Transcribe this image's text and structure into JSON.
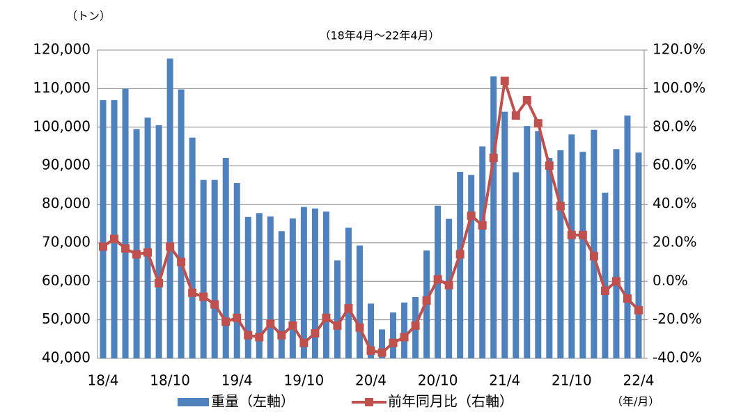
{
  "chart_data": {
    "type": "bar_line",
    "unit_label": "（トン）",
    "subtitle": "（18年4月～22年4月）",
    "x_unit_label": "（年/月）",
    "categories": [
      "18/4",
      null,
      null,
      null,
      null,
      null,
      "18/10",
      null,
      null,
      null,
      null,
      null,
      "19/4",
      null,
      null,
      null,
      null,
      null,
      "19/10",
      null,
      null,
      null,
      null,
      null,
      "20/4",
      null,
      null,
      null,
      null,
      null,
      "20/10",
      null,
      null,
      null,
      null,
      null,
      "21/4",
      null,
      null,
      null,
      null,
      null,
      "21/10",
      null,
      null,
      null,
      null,
      null,
      "22/4"
    ],
    "series": [
      {
        "name": "重量（左軸）",
        "color": "#4f81bd",
        "axis": "y",
        "values": [
          107000,
          107000,
          110000,
          99500,
          102500,
          100500,
          117800,
          109800,
          97300,
          86300,
          86300,
          92000,
          85500,
          76700,
          77700,
          76800,
          73000,
          76300,
          79300,
          78900,
          78100,
          65400,
          73900,
          69300,
          54200,
          47500,
          51900,
          54500,
          55900,
          68000,
          79600,
          76200,
          88400,
          87600,
          95000,
          113200,
          104000,
          88300,
          100300,
          99000,
          92000,
          94000,
          98100,
          93600,
          99300,
          83000,
          94300,
          103000,
          93400
        ]
      },
      {
        "name": "前年同月比（右軸）",
        "color": "#c0504d",
        "axis": "y2",
        "values": [
          18,
          22,
          17,
          14,
          15,
          -1,
          18,
          10,
          -6,
          -8,
          -12,
          -21,
          -19,
          -28,
          -29,
          -22,
          -28,
          -23,
          -32,
          -27,
          -19,
          -23,
          -14,
          -24,
          -36,
          -37,
          -32,
          -29,
          -23,
          -10,
          1,
          -2,
          14,
          34,
          29,
          64,
          104,
          86,
          94,
          82,
          60,
          39,
          24,
          24,
          13,
          -5,
          0,
          -9,
          -15
        ]
      }
    ],
    "ylim": [
      40000,
      120000
    ],
    "yticks": [
      {
        "value": 40000,
        "label": "40,000"
      },
      {
        "value": 50000,
        "label": "50,000"
      },
      {
        "value": 60000,
        "label": "60,000"
      },
      {
        "value": 70000,
        "label": "70,000"
      },
      {
        "value": 80000,
        "label": "80,000"
      },
      {
        "value": 90000,
        "label": "90,000"
      },
      {
        "value": 100000,
        "label": "100,000"
      },
      {
        "value": 110000,
        "label": "110,000"
      },
      {
        "value": 120000,
        "label": "120,000"
      }
    ],
    "y2lim": [
      -40,
      120
    ],
    "y2ticks": [
      {
        "value": -40,
        "label": "-40.0%"
      },
      {
        "value": -20,
        "label": "-20.0%"
      },
      {
        "value": 0,
        "label": "0.0%"
      },
      {
        "value": 20,
        "label": "20.0%"
      },
      {
        "value": 40,
        "label": "40.0%"
      },
      {
        "value": 60,
        "label": "60.0%"
      },
      {
        "value": 80,
        "label": "80.0%"
      },
      {
        "value": 100,
        "label": "100.0%"
      },
      {
        "value": 120,
        "label": "120.0%"
      }
    ],
    "grid": true,
    "legend": "bottom"
  }
}
